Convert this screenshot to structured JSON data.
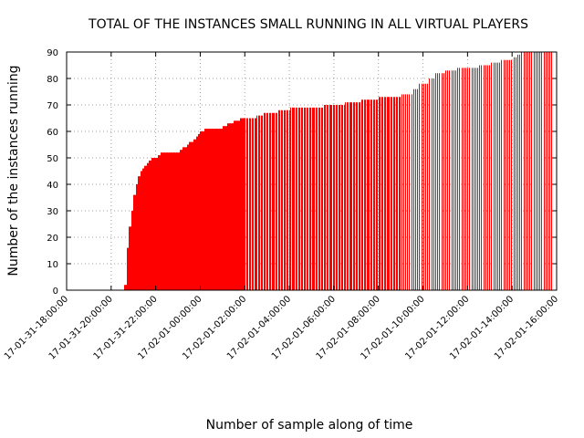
{
  "chart_data": {
    "type": "bar",
    "title": "TOTAL OF THE INSTANCES SMALL RUNNING IN ALL VIRTUAL PLAYERS",
    "xlabel": "Number of sample along of time",
    "ylabel": "Number of the instances running",
    "ylim": [
      0,
      90
    ],
    "y_ticks": [
      0,
      10,
      20,
      30,
      40,
      50,
      60,
      70,
      80,
      90
    ],
    "x_range": [
      "17-01-31-18:00:00",
      "17-02-01-16:00:00"
    ],
    "x_tick_labels": [
      "17-01-31-18:00:00",
      "17-01-31-20:00:00",
      "17-01-31-22:00:00",
      "17-02-01-00:00:00",
      "17-02-01-02:00:00",
      "17-02-01-04:00:00",
      "17-02-01-06:00:00",
      "17-02-01-08:00:00",
      "17-02-01-10:00:00",
      "17-02-01-12:00:00",
      "17-02-01-14:00:00",
      "17-02-01-16:00:00"
    ],
    "x_hours": [
      -6,
      -4,
      -2,
      0,
      2,
      4,
      6,
      8,
      10,
      12,
      14,
      16
    ],
    "grid": true,
    "bar_color": "#ff0000",
    "series": [
      {
        "profile": [
          [
            -3.4,
            2
          ],
          [
            -3.3,
            16
          ],
          [
            -3.2,
            24
          ],
          [
            -3.1,
            30
          ],
          [
            -3.0,
            36
          ],
          [
            -2.9,
            40
          ],
          [
            -2.8,
            43
          ],
          [
            -2.7,
            45
          ],
          [
            -2.6,
            46
          ],
          [
            -2.5,
            47
          ],
          [
            -2.4,
            48
          ],
          [
            -2.3,
            49
          ],
          [
            -2.2,
            50
          ],
          [
            -2.0,
            50
          ],
          [
            -1.9,
            51
          ],
          [
            -1.8,
            52
          ],
          [
            -1.0,
            52
          ],
          [
            -0.9,
            53
          ],
          [
            -0.8,
            54
          ],
          [
            -0.6,
            55
          ],
          [
            -0.5,
            56
          ],
          [
            -0.3,
            57
          ],
          [
            -0.2,
            58
          ],
          [
            -0.1,
            59
          ],
          [
            0.0,
            60
          ],
          [
            0.2,
            61
          ],
          [
            0.8,
            61
          ],
          [
            1.0,
            62
          ],
          [
            1.2,
            63
          ],
          [
            1.5,
            64
          ],
          [
            1.8,
            65
          ],
          [
            2.5,
            66
          ],
          [
            2.8,
            67
          ],
          [
            3.5,
            68
          ],
          [
            4.0,
            69
          ],
          [
            5.0,
            69
          ],
          [
            5.5,
            70
          ],
          [
            6.5,
            71
          ],
          [
            7.2,
            72
          ],
          [
            8.0,
            73
          ],
          [
            9.0,
            74
          ],
          [
            9.5,
            76
          ],
          [
            9.8,
            78
          ],
          [
            10.2,
            80
          ],
          [
            10.5,
            82
          ],
          [
            11.0,
            83
          ],
          [
            11.5,
            84
          ],
          [
            12.5,
            85
          ],
          [
            13.0,
            86
          ],
          [
            13.5,
            87
          ],
          [
            14.0,
            88
          ],
          [
            14.2,
            89
          ],
          [
            14.4,
            90
          ],
          [
            15.8,
            90
          ]
        ]
      }
    ]
  }
}
